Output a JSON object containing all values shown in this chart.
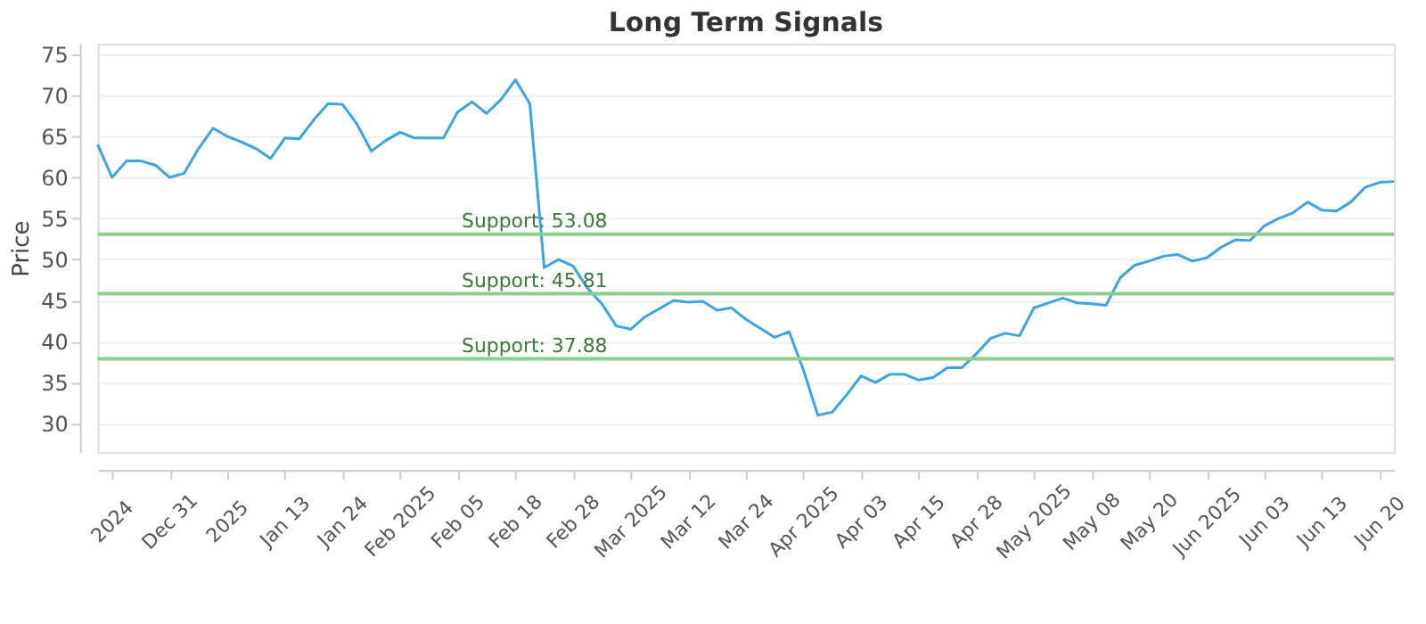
{
  "chart_data": {
    "type": "line",
    "title": "Long Term Signals",
    "ylabel": "Price",
    "categories": [
      null,
      "2024",
      null,
      null,
      null,
      "Dec 31",
      null,
      null,
      null,
      "2025",
      null,
      null,
      null,
      "Jan 13",
      null,
      null,
      null,
      "Jan 24",
      null,
      null,
      null,
      "Feb 2025",
      null,
      null,
      null,
      "Feb 05",
      null,
      null,
      null,
      "Feb 18",
      null,
      null,
      null,
      "Feb 28",
      null,
      null,
      null,
      "Mar 2025",
      null,
      null,
      null,
      "Mar 12",
      null,
      null,
      null,
      "Mar 24",
      null,
      null,
      null,
      "Apr 2025",
      null,
      null,
      null,
      "Apr 03",
      null,
      null,
      null,
      "Apr 15",
      null,
      null,
      null,
      "Apr 28",
      null,
      null,
      null,
      "May 2025",
      null,
      null,
      null,
      "May 08",
      null,
      null,
      null,
      "May 20",
      null,
      null,
      null,
      "Jun 2025",
      null,
      null,
      null,
      "Jun 03",
      null,
      null,
      null,
      "Jun 13",
      null,
      null,
      null,
      "Jun 20",
      null
    ],
    "series": [
      {
        "color": "#3ca3e6",
        "values": [
          64,
          60,
          62,
          62,
          61.5,
          60,
          60.5,
          63.5,
          66,
          65,
          64.3,
          63.5,
          62.3,
          64.8,
          64.7,
          67,
          69,
          68.9,
          66.5,
          63.2,
          64.5,
          65.5,
          64.8,
          64.8,
          64.8,
          68,
          69.2,
          67.8,
          69.5,
          71.9,
          69,
          49,
          50,
          49.2,
          46.5,
          44.6,
          41.9,
          41.5,
          43,
          44,
          45,
          44.8,
          44.9,
          43.8,
          44.1,
          42.7,
          41.6,
          40.5,
          41.2,
          36.5,
          31,
          31.4,
          33.5,
          35.8,
          35,
          36,
          36,
          35.3,
          35.6,
          36.8,
          36.8,
          38.5,
          40.4,
          41,
          40.7,
          44.1,
          44.7,
          45.3,
          44.7,
          44.6,
          44.4,
          47.8,
          49.3,
          49.8,
          50.4,
          50.6,
          49.8,
          50.2,
          51.5,
          52.4,
          52.3,
          54.1,
          55,
          55.7,
          57,
          56,
          55.9,
          57,
          58.8,
          59.4,
          59.5
        ]
      }
    ],
    "ylim": [
      26.5,
      76.3
    ],
    "yticks": [
      30,
      35,
      40,
      45,
      50,
      55,
      60,
      65,
      70,
      75
    ],
    "grid": "y",
    "marker": "none",
    "line_style": "solid",
    "ref_lines": [
      {
        "axis": "y",
        "value": 53.08,
        "label": "Support: 53.08",
        "color": "#8fcc8f"
      },
      {
        "axis": "y",
        "value": 45.81,
        "label": "Support: 45.81",
        "color": "#8fcc8f"
      },
      {
        "axis": "y",
        "value": 37.88,
        "label": "Support: 37.88",
        "color": "#8fcc8f"
      }
    ]
  }
}
